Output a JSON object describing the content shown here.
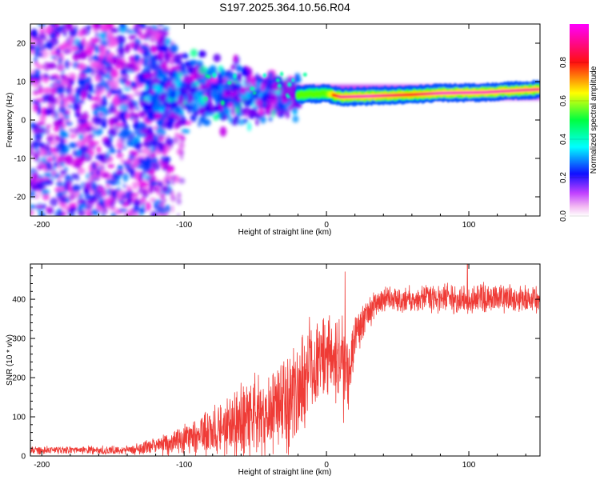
{
  "figure": {
    "title": "S197.2025.364.10.56.R04",
    "colors": {
      "snr_line": "#ef3b36",
      "axis": "#000000",
      "background": "#ffffff"
    }
  },
  "chart_data": [
    {
      "type": "heatmap",
      "name": "spectrogram",
      "title": "S197.2025.364.10.56.R04",
      "xlabel": "Height of straight line (km)",
      "ylabel": "Frequency (Hz)",
      "xlim": [
        -208,
        150
      ],
      "ylim": [
        -25,
        25
      ],
      "xticks": [
        -200,
        -100,
        0,
        100
      ],
      "yticks": [
        -20,
        -10,
        0,
        10,
        20
      ],
      "colorbar": {
        "label": "Normalized spectral amplitude",
        "range": [
          0,
          1
        ],
        "ticks": [
          "0.0",
          "0.2",
          "0.4",
          "0.6",
          "0.8"
        ],
        "tick_values": [
          0.0,
          0.2,
          0.4,
          0.6,
          0.8
        ],
        "colormap": [
          "#ffffff",
          "#e600e6",
          "#0000ff",
          "#00ffff",
          "#00ff00",
          "#ffff00",
          "#ff0000",
          "#ff00ff"
        ]
      },
      "features": {
        "noise_region_x": [
          -208,
          -120
        ],
        "noise_amplitude": [
          0.05,
          0.3
        ],
        "transition_region_x": [
          -130,
          -20
        ],
        "signal_band": [
          {
            "x": -20,
            "freq": 6.5,
            "amplitude": 0.6
          },
          {
            "x": 0,
            "freq": 7.0,
            "amplitude": 0.6
          },
          {
            "x": 10,
            "freq": 6.0,
            "amplitude": 0.9
          },
          {
            "x": 30,
            "freq": 6.2,
            "amplitude": 0.95
          },
          {
            "x": 60,
            "freq": 6.6,
            "amplitude": 0.8
          },
          {
            "x": 80,
            "freq": 7.0,
            "amplitude": 0.95
          },
          {
            "x": 110,
            "freq": 7.2,
            "amplitude": 0.95
          },
          {
            "x": 150,
            "freq": 8.0,
            "amplitude": 0.9
          }
        ]
      }
    },
    {
      "type": "line",
      "name": "snr",
      "xlabel": "Height of straight line (km)",
      "ylabel": "SNR (10 * v/v)",
      "xlim": [
        -208,
        150
      ],
      "ylim": [
        0,
        490
      ],
      "xticks": [
        -200,
        -100,
        0,
        100
      ],
      "yticks": [
        0,
        100,
        200,
        300,
        400
      ],
      "series": [
        {
          "name": "SNR",
          "color": "#ef3b36",
          "trend": [
            {
              "x": -208,
              "mean": 15,
              "spread": 12
            },
            {
              "x": -140,
              "mean": 15,
              "spread": 12
            },
            {
              "x": -120,
              "mean": 25,
              "spread": 25
            },
            {
              "x": -100,
              "mean": 40,
              "spread": 45
            },
            {
              "x": -80,
              "mean": 60,
              "spread": 75
            },
            {
              "x": -60,
              "mean": 85,
              "spread": 105
            },
            {
              "x": -40,
              "mean": 115,
              "spread": 130
            },
            {
              "x": -20,
              "mean": 170,
              "spread": 165
            },
            {
              "x": -10,
              "mean": 230,
              "spread": 140
            },
            {
              "x": 0,
              "mean": 270,
              "spread": 120
            },
            {
              "x": 10,
              "mean": 240,
              "spread": 130
            },
            {
              "x": 15,
              "mean": 200,
              "spread": 130
            },
            {
              "x": 20,
              "mean": 310,
              "spread": 70
            },
            {
              "x": 30,
              "mean": 370,
              "spread": 45
            },
            {
              "x": 40,
              "mean": 400,
              "spread": 40
            },
            {
              "x": 100,
              "mean": 402,
              "spread": 45
            },
            {
              "x": 150,
              "mean": 400,
              "spread": 40
            }
          ],
          "notable_points": [
            {
              "x": 13,
              "y": 470
            },
            {
              "x": 12,
              "y": 85
            },
            {
              "x": 99,
              "y": 490
            }
          ]
        }
      ]
    }
  ]
}
